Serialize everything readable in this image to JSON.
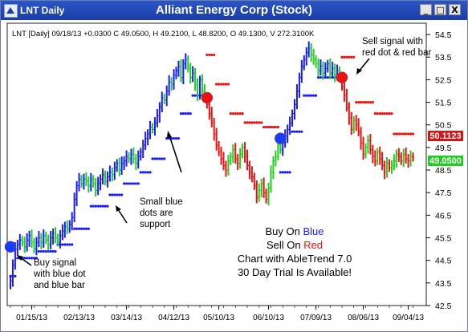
{
  "window": {
    "symbol": "LNT Daily",
    "title": "Alliant Energy Corp (Stock)",
    "buttons": {
      "minimize": "_",
      "maximize": "□",
      "close": "X"
    }
  },
  "info_line": "LNT [Daily] 09/18/13  +0.0300 C 49.0500, H 49.2100, L 48.8200, O 49.1300, V 272.3100K",
  "annotations": {
    "buy_signal": [
      "Buy signal",
      "with blue dot",
      "and blue bar"
    ],
    "support": [
      "Small blue",
      "dots are",
      "support"
    ],
    "sell_signal": [
      "Sell signal with",
      "red dot & red bar"
    ],
    "promo": {
      "buy_prefix": "Buy On ",
      "buy_word": "Blue",
      "sell_prefix": "Sell On ",
      "sell_word": "Red",
      "line3": "Chart with AbleTrend 7.0",
      "line4": "30 Day Trial Is Available!"
    }
  },
  "price_tags": {
    "upper": "50.1123",
    "lower": "49.0500"
  },
  "colors": {
    "up_bar": "#1a1aff",
    "neutral_bar": "#22cc22",
    "down_bar": "#ee1111",
    "support_dot": "#1a1aff",
    "resistance_dot": "#ee1111",
    "tag_upper": "#dd1111",
    "tag_lower": "#22cc22"
  },
  "chart_data": {
    "type": "bar",
    "series_name": "LNT Daily OHLC",
    "x_tick_labels": [
      "01/15/13",
      "02/13/13",
      "03/14/13",
      "04/12/13",
      "05/10/13",
      "06/10/13",
      "07/09/13",
      "08/06/13",
      "09/04/13"
    ],
    "y_tick_labels": [
      "42.5",
      "43.5",
      "44.5",
      "45.5",
      "46.5",
      "47.5",
      "48.5",
      "49.5",
      "50.5",
      "51.5",
      "52.5",
      "53.5",
      "54.5"
    ],
    "ylim": [
      42.5,
      55.0
    ],
    "grid": false,
    "signals": [
      {
        "type": "buy",
        "date": "01/02/13",
        "price": 45.1
      },
      {
        "type": "sell",
        "date": "05/14/13",
        "price": 51.7
      },
      {
        "type": "buy",
        "date": "06/26/13",
        "price": 49.9
      },
      {
        "type": "sell",
        "date": "08/06/13",
        "price": 52.6
      }
    ],
    "segments": [
      {
        "color": "blue",
        "closes": [
          43.6,
          44.3,
          45.0,
          45.2,
          45.4,
          45.3,
          45.1,
          45.4,
          45.6,
          45.3,
          45.0,
          45.3,
          45.5,
          45.3,
          45.6,
          45.4,
          45.2,
          45.5,
          45.7,
          45.5,
          45.3,
          45.6,
          45.8,
          46.0,
          45.9,
          46.1,
          46.4,
          47.2,
          47.8,
          48.1,
          47.9,
          48.1,
          48.0,
          47.8,
          48.1,
          47.9,
          47.6,
          47.9,
          48.1,
          48.3,
          48.0,
          48.2,
          48.4,
          48.3,
          48.6,
          48.8,
          48.5,
          48.8,
          48.9,
          49.1,
          49.0,
          49.2,
          49.0,
          48.8,
          49.1,
          49.3,
          49.6,
          49.9,
          50.1,
          50.4,
          50.3,
          50.6,
          50.9,
          51.3,
          51.7,
          51.6,
          52.0,
          52.4,
          52.3,
          52.7,
          52.9,
          53.1,
          52.6,
          53.2,
          53.4,
          53.0,
          52.6,
          52.8,
          52.3,
          51.8,
          52.5,
          52.0,
          51.7
        ]
      },
      {
        "color": "red",
        "closes": [
          51.4,
          51.0,
          50.6,
          50.1,
          49.6,
          49.3,
          49.0,
          48.7,
          48.5,
          48.9,
          49.1,
          49.4,
          49.0,
          48.8,
          49.2,
          49.5,
          49.1,
          48.7,
          48.4,
          48.2,
          47.8,
          47.3,
          47.6,
          47.9,
          47.5,
          47.2,
          47.7,
          48.4,
          48.9,
          49.1,
          49.6
        ]
      },
      {
        "color": "blue",
        "closes": [
          49.4,
          49.7,
          50.0,
          50.3,
          50.6,
          51.0,
          51.4,
          52.0,
          52.6,
          53.1,
          53.4,
          53.7,
          53.9,
          53.6,
          53.4,
          53.2,
          52.9,
          53.1,
          52.8,
          53.0,
          53.2,
          52.8,
          53.0,
          52.7,
          52.9,
          52.6
        ]
      },
      {
        "color": "red",
        "closes": [
          52.2,
          51.8,
          51.3,
          50.8,
          50.3,
          50.7,
          50.5,
          50.2,
          49.7,
          49.2,
          49.5,
          49.8,
          49.4,
          49.1,
          48.9,
          49.3,
          49.0,
          48.7,
          48.4,
          48.8,
          48.6,
          48.7,
          48.9,
          49.2,
          49.1,
          48.9,
          49.2,
          49.0,
          48.9,
          49.1,
          49.05
        ]
      }
    ],
    "stop_levels": [
      {
        "segment": 0,
        "color": "blue",
        "levels": [
          {
            "from": 0,
            "to": 3,
            "v": 43.8
          },
          {
            "from": 3,
            "to": 12,
            "v": 44.6
          },
          {
            "from": 12,
            "to": 20,
            "v": 44.9
          },
          {
            "from": 20,
            "to": 27,
            "v": 45.2
          },
          {
            "from": 27,
            "to": 34,
            "v": 45.9
          },
          {
            "from": 34,
            "to": 42,
            "v": 46.9
          },
          {
            "from": 42,
            "to": 48,
            "v": 47.4
          },
          {
            "from": 48,
            "to": 55,
            "v": 47.9
          },
          {
            "from": 55,
            "to": 60,
            "v": 48.4
          },
          {
            "from": 60,
            "to": 66,
            "v": 49.0
          },
          {
            "from": 66,
            "to": 72,
            "v": 49.9
          },
          {
            "from": 72,
            "to": 77,
            "v": 51.0
          },
          {
            "from": 77,
            "to": 83,
            "v": 51.8
          }
        ]
      },
      {
        "segment": 1,
        "color": "red",
        "levels": [
          {
            "from": 0,
            "to": 4,
            "v": 53.6
          },
          {
            "from": 4,
            "to": 10,
            "v": 52.3
          },
          {
            "from": 10,
            "to": 16,
            "v": 51.0
          },
          {
            "from": 16,
            "to": 24,
            "v": 50.6
          },
          {
            "from": 24,
            "to": 31,
            "v": 50.4
          }
        ]
      },
      {
        "segment": 2,
        "color": "blue",
        "levels": [
          {
            "from": 0,
            "to": 5,
            "v": 48.4
          },
          {
            "from": 5,
            "to": 10,
            "v": 50.2
          },
          {
            "from": 10,
            "to": 16,
            "v": 51.8
          },
          {
            "from": 16,
            "to": 26,
            "v": 52.6
          }
        ]
      },
      {
        "segment": 3,
        "color": "red",
        "levels": [
          {
            "from": 0,
            "to": 6,
            "v": 53.5
          },
          {
            "from": 6,
            "to": 14,
            "v": 51.5
          },
          {
            "from": 14,
            "to": 22,
            "v": 51.0
          },
          {
            "from": 22,
            "to": 31,
            "v": 50.1
          }
        ]
      }
    ]
  }
}
